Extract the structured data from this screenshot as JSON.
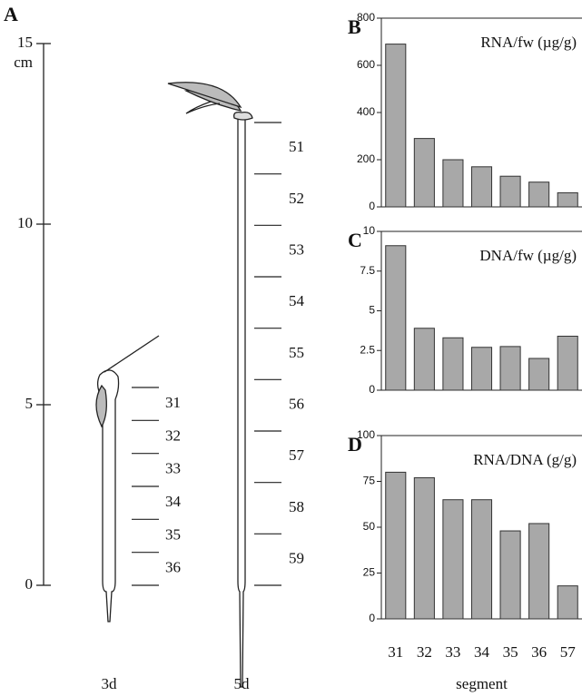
{
  "panel_a": {
    "label": "A",
    "unit": "cm",
    "ylim": [
      0,
      15
    ],
    "yticks": [
      0,
      5,
      10,
      15
    ],
    "seedlings": [
      {
        "age": "3d",
        "segments": [
          "31",
          "32",
          "33",
          "34",
          "35",
          "36"
        ]
      },
      {
        "age": "5d",
        "segments": [
          "51",
          "52",
          "53",
          "54",
          "55",
          "56",
          "57",
          "58",
          "59"
        ]
      }
    ]
  },
  "chart_data": [
    {
      "type": "bar",
      "panel_label": "B",
      "title": "RNA/fw (µg/g)",
      "categories": [
        null,
        null,
        null,
        null,
        null,
        null,
        null
      ],
      "values": [
        690,
        290,
        200,
        170,
        130,
        105,
        60
      ],
      "color": "#a8a8a8",
      "ylim": [
        0,
        800
      ],
      "yticks": [
        0,
        200,
        400,
        600,
        800
      ]
    },
    {
      "type": "bar",
      "panel_label": "C",
      "title": "DNA/fw (µg/g)",
      "categories": [
        null,
        null,
        null,
        null,
        null,
        null,
        null
      ],
      "values": [
        9.1,
        3.9,
        3.3,
        2.7,
        2.75,
        2.0,
        3.4
      ],
      "color": "#a8a8a8",
      "ylim": [
        0,
        10
      ],
      "yticks": [
        0,
        2.5,
        5,
        7.5,
        10
      ]
    },
    {
      "type": "bar",
      "panel_label": "D",
      "title": "RNA/DNA (g/g)",
      "categories": [
        "31",
        "32",
        "33",
        "34",
        "35",
        "36",
        "57"
      ],
      "values": [
        80,
        77,
        65,
        65,
        48,
        52,
        18
      ],
      "color": "#a8a8a8",
      "ylim": [
        0,
        100
      ],
      "yticks": [
        0,
        25,
        50,
        75,
        100
      ],
      "x_label": "segment"
    }
  ]
}
